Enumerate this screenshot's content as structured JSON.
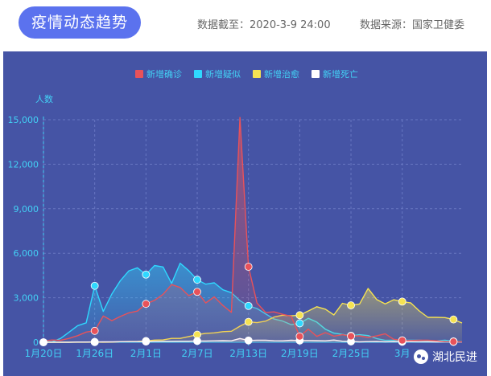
{
  "header": {
    "title": "疫情动态趋势",
    "as_of": "数据截至：2020-3-9 24:00",
    "source": "数据来源：国家卫健委"
  },
  "watermark": {
    "text": "湖北民进",
    "icon": "wechat-icon"
  },
  "colors": {
    "background": "#4554a5",
    "axis": "#43d1f5",
    "confirmed": "#e8525a",
    "suspected": "#2fd8ff",
    "cured": "#f5e252",
    "dead": "#ffffff"
  },
  "chart_data": {
    "type": "line",
    "title": "",
    "xlabel": "",
    "ylabel": "人数",
    "x": [
      "1月20日",
      "1月21日",
      "1月22日",
      "1月23日",
      "1月24日",
      "1月25日",
      "1月26日",
      "1月27日",
      "1月28日",
      "1月29日",
      "1月30日",
      "1月31日",
      "2月1日",
      "2月2日",
      "2月3日",
      "2月4日",
      "2月5日",
      "2月6日",
      "2月7日",
      "2月8日",
      "2月9日",
      "2月10日",
      "2月11日",
      "2月12日",
      "2月13日",
      "2月14日",
      "2月15日",
      "2月16日",
      "2月17日",
      "2月18日",
      "2月19日",
      "2月20日",
      "2月21日",
      "2月22日",
      "2月23日",
      "2月24日",
      "2月25日",
      "2月26日",
      "2月27日",
      "2月28日",
      "2月29日",
      "3月1日",
      "3月2日",
      "3月3日",
      "3月4日",
      "3月5日",
      "3月6日",
      "3月7日",
      "3月8日",
      "3月9日"
    ],
    "x_tick_labels": [
      "1月20日",
      "1月26日",
      "2月1日",
      "2月7日",
      "2月13日",
      "2月19日",
      "2月25日",
      "3月"
    ],
    "y_tick_labels": [
      "0",
      "3,000",
      "6,000",
      "9,000",
      "12,000",
      "15,000"
    ],
    "ylim": [
      0,
      15000
    ],
    "grid": true,
    "legend_position": "top",
    "series": [
      {
        "name": "新增确诊",
        "color_key": "confirmed",
        "values": [
          77,
          149,
          131,
          259,
          444,
          688,
          769,
          1771,
          1459,
          1737,
          1982,
          2102,
          2590,
          2829,
          3235,
          3887,
          3694,
          3143,
          3399,
          2656,
          3062,
          2478,
          2015,
          15152,
          5090,
          2641,
          2009,
          2048,
          1886,
          1749,
          394,
          889,
          397,
          648,
          409,
          508,
          406,
          433,
          327,
          427,
          573,
          202,
          125,
          119,
          139,
          143,
          99,
          44,
          40,
          19
        ]
      },
      {
        "name": "新增疑似",
        "color_key": "suspected",
        "values": [
          27,
          26,
          257,
          680,
          1118,
          1309,
          3806,
          2077,
          3248,
          4148,
          4812,
          5019,
          4562,
          5173,
          5072,
          3971,
          5328,
          4833,
          4214,
          3916,
          4008,
          3536,
          3342,
          2807,
          2450,
          2277,
          1918,
          1563,
          1432,
          1185,
          1277,
          1614,
          1361,
          882,
          620,
          530,
          439,
          508,
          452,
          248,
          132,
          141,
          129,
          143,
          143,
          102,
          99,
          137,
          60,
          36
        ]
      },
      {
        "name": "新增治愈",
        "color_key": "cured",
        "values": [
          0,
          0,
          0,
          0,
          3,
          6,
          9,
          6,
          9,
          38,
          50,
          57,
          85,
          147,
          157,
          262,
          261,
          387,
          510,
          600,
          632,
          716,
          744,
          1081,
          1373,
          1323,
          1425,
          1701,
          1824,
          1779,
          1824,
          2109,
          2393,
          2231,
          1842,
          2629,
          2492,
          2575,
          3622,
          2885,
          2589,
          2867,
          2742,
          2652,
          2111,
          1681,
          1678,
          1661,
          1535,
          1297
        ]
      },
      {
        "name": "新增死亡",
        "color_key": "dead",
        "values": [
          0,
          3,
          8,
          8,
          16,
          15,
          24,
          26,
          26,
          38,
          43,
          46,
          45,
          57,
          64,
          65,
          73,
          73,
          86,
          89,
          97,
          108,
          97,
          254,
          121,
          143,
          142,
          105,
          98,
          136,
          114,
          118,
          109,
          97,
          150,
          71,
          52,
          29,
          44,
          47,
          35,
          42,
          31,
          38,
          31,
          30,
          28,
          27,
          22,
          17
        ]
      }
    ],
    "highlighted_points": {
      "confirmed": [
        6,
        12,
        18,
        24,
        30,
        36,
        42,
        48
      ],
      "suspected": [
        6,
        12,
        18,
        24,
        30,
        36,
        42,
        48
      ],
      "cured": [
        0,
        6,
        12,
        18,
        24,
        30,
        36,
        42,
        48
      ],
      "dead": [
        0,
        6,
        12,
        18,
        24,
        30,
        36,
        42,
        48
      ]
    }
  }
}
